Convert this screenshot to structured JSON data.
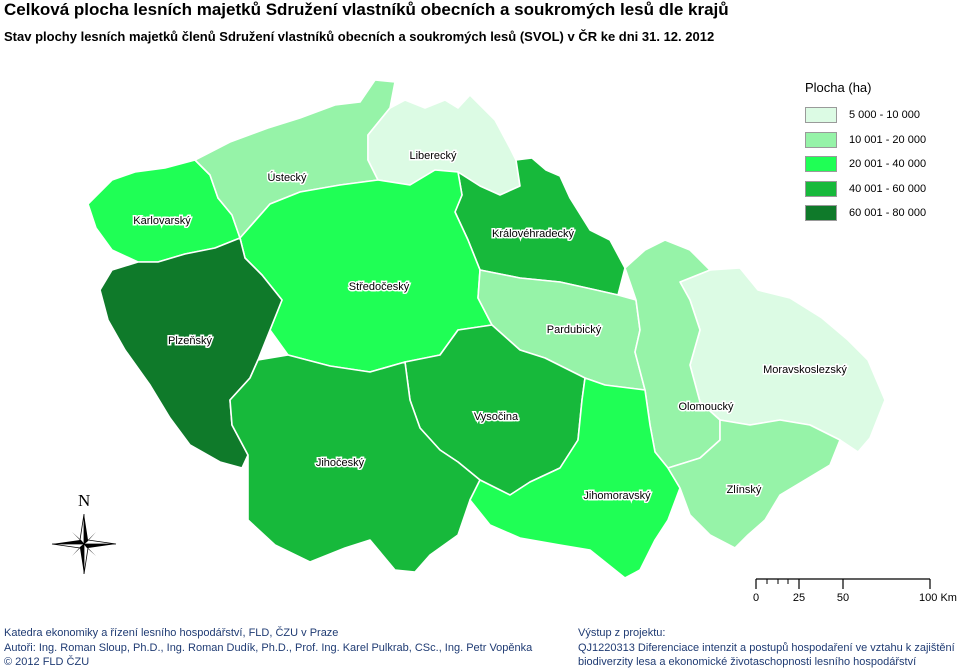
{
  "title": "Celková plocha lesních majetků Sdružení vlastníků obecních a soukromých lesů dle krajů",
  "subtitle": "Stav plochy lesních majetků členů Sdružení vlastníků obecních a soukromých lesů (SVOL) v ČR ke dni 31. 12. 2012",
  "legend": {
    "title": "Plocha (ha)",
    "classes": [
      {
        "label": "5 000 - 10 000",
        "color": "#dcfbe4"
      },
      {
        "label": "10 001 - 20 000",
        "color": "#96f3a8"
      },
      {
        "label": "20 001 - 40 000",
        "color": "#1fff55"
      },
      {
        "label": "40 001 - 60 000",
        "color": "#17b93b"
      },
      {
        "label": "60 001 - 80 000",
        "color": "#0f7a2a"
      }
    ]
  },
  "regions": [
    {
      "name": "Karlovarský",
      "color": "#1fff55"
    },
    {
      "name": "Ústecký",
      "color": "#96f3a8"
    },
    {
      "name": "Liberecký",
      "color": "#dcfbe4"
    },
    {
      "name": "Královéhradecký",
      "color": "#17b93b"
    },
    {
      "name": "Středočeský",
      "color": "#1fff55"
    },
    {
      "name": "Plzeňský",
      "color": "#0f7a2a"
    },
    {
      "name": "Pardubický",
      "color": "#96f3a8"
    },
    {
      "name": "Moravskoslezský",
      "color": "#dcfbe4"
    },
    {
      "name": "Olomoucký",
      "color": "#96f3a8"
    },
    {
      "name": "Vysočina",
      "color": "#17b93b"
    },
    {
      "name": "Jihočeský",
      "color": "#17b93b"
    },
    {
      "name": "Jihomoravský",
      "color": "#1fff55"
    },
    {
      "name": "Zlínský",
      "color": "#96f3a8"
    }
  ],
  "north_label": "N",
  "scale_bar": {
    "ticks": [
      "0",
      "25",
      "50",
      "100 Km"
    ]
  },
  "footer_left": [
    "Katedra ekonomiky a řízení lesního hospodářství, FLD, ČZU v Praze",
    "Autoři: Ing. Roman Sloup, Ph.D., Ing. Roman Dudík, Ph.D., Prof. Ing. Karel Pulkrab, CSc., Ing. Petr Vopěnka",
    "© 2012 FLD ČZU"
  ],
  "footer_right": [
    "Výstup z projektu:",
    "QJ1220313 Diferenciace intenzit a postupů hospodaření ve vztahu k zajištění",
    "biodiverzity lesa a ekonomické životaschopnosti lesního hospodářství"
  ]
}
